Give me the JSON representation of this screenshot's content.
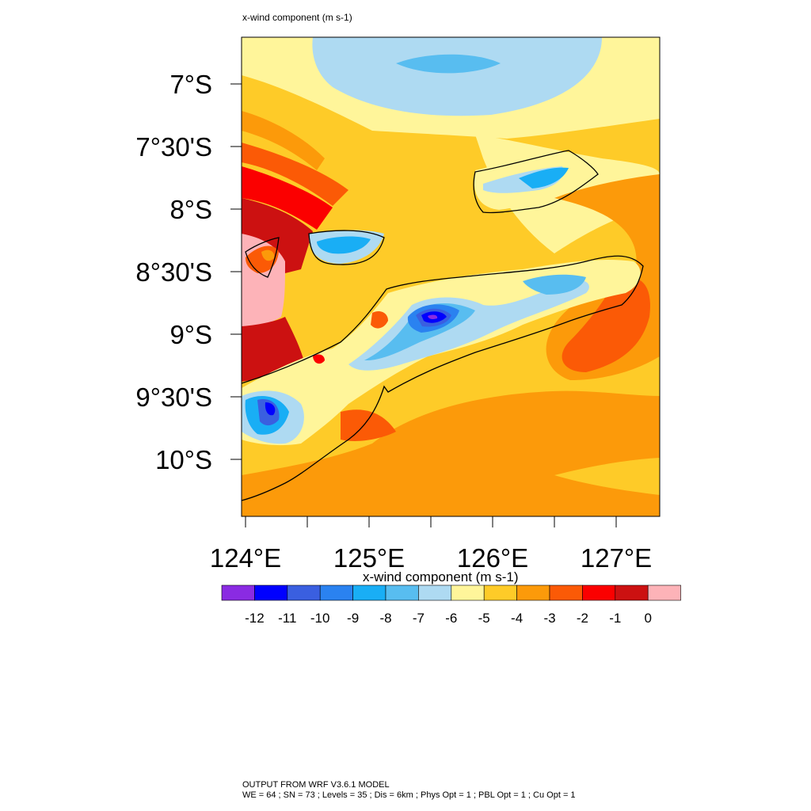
{
  "header": {
    "title": "x-wind component   (m s-1)"
  },
  "map": {
    "lat_labels": [
      "7°S",
      "7°30'S",
      "8°S",
      "8°30'S",
      "9°S",
      "9°30'S",
      "10°S"
    ],
    "lon_labels": [
      "124°E",
      "125°E",
      "126°E",
      "127°E"
    ]
  },
  "colorbar": {
    "title": "x-wind component  (m s-1)",
    "labels": [
      "-12",
      "-11",
      "-10",
      "-9",
      "-8",
      "-7",
      "-6",
      "-5",
      "-4",
      "-3",
      "-2",
      "-1",
      "0"
    ],
    "colors": [
      "#8a2be2",
      "#0000ff",
      "#3a5fe0",
      "#2a82f0",
      "#19aef5",
      "#58bdf0",
      "#aedaf2",
      "#fff59a",
      "#fecb28",
      "#fc9a0a",
      "#fb5a06",
      "#fb0000",
      "#cc1111",
      "#fdb3b8"
    ]
  },
  "footer": {
    "line1": "OUTPUT FROM WRF V3.6.1 MODEL",
    "line2": "WE = 64 ; SN = 73 ; Levels = 35 ; Dis = 6km ; Phys Opt = 1 ; PBL Opt = 1 ; Cu Opt = 1"
  }
}
